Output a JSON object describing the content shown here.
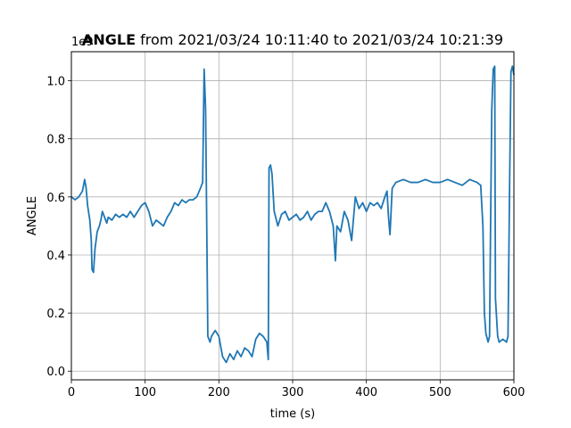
{
  "chart_data": {
    "type": "line",
    "title_bold": "ANGLE",
    "title_rest": " from 2021/03/24 10:11:40 to 2021/03/24 10:21:39",
    "xlabel": "time (s)",
    "ylabel": "ANGLE",
    "y_offset_label": "1e9",
    "xlim": [
      0,
      600
    ],
    "ylim": [
      -0.03,
      1.1
    ],
    "x_ticks": [
      0,
      100,
      200,
      300,
      400,
      500,
      600
    ],
    "y_ticks": [
      0.0,
      0.2,
      0.4,
      0.6,
      0.8,
      1.0
    ],
    "x_tick_labels": [
      "0",
      "100",
      "200",
      "300",
      "400",
      "500",
      "600"
    ],
    "y_tick_labels": [
      "0.0",
      "0.2",
      "0.4",
      "0.6",
      "0.8",
      "1.0"
    ],
    "grid": true,
    "line_color": "#1f77b4",
    "series": [
      {
        "x": [
          0,
          5,
          10,
          15,
          18,
          20,
          22,
          25,
          27,
          28,
          30,
          32,
          35,
          38,
          40,
          42,
          45,
          48,
          50,
          55,
          60,
          65,
          70,
          75,
          80,
          85,
          90,
          95,
          100,
          105,
          110,
          115,
          120,
          125,
          130,
          135,
          140,
          145,
          150,
          155,
          160,
          165,
          170,
          175,
          178,
          180,
          182,
          185,
          188,
          190,
          195,
          200,
          205,
          210,
          215,
          220,
          225,
          230,
          235,
          240,
          245,
          250,
          255,
          260,
          265,
          267,
          268,
          270,
          272,
          275,
          280,
          285,
          290,
          295,
          300,
          305,
          310,
          315,
          320,
          325,
          330,
          335,
          340,
          345,
          350,
          355,
          358,
          360,
          365,
          370,
          375,
          380,
          385,
          390,
          395,
          400,
          405,
          410,
          415,
          420,
          425,
          428,
          430,
          432,
          435,
          440,
          450,
          460,
          470,
          480,
          490,
          500,
          510,
          520,
          530,
          540,
          550,
          555,
          558,
          560,
          562,
          565,
          567,
          568,
          570,
          572,
          574,
          575,
          578,
          580,
          585,
          590,
          592,
          594,
          596,
          598,
          600
        ],
        "y": [
          0.6,
          0.59,
          0.6,
          0.62,
          0.66,
          0.63,
          0.57,
          0.52,
          0.45,
          0.35,
          0.34,
          0.42,
          0.48,
          0.5,
          0.52,
          0.55,
          0.53,
          0.51,
          0.53,
          0.52,
          0.54,
          0.53,
          0.54,
          0.53,
          0.55,
          0.53,
          0.55,
          0.57,
          0.58,
          0.55,
          0.5,
          0.52,
          0.51,
          0.5,
          0.53,
          0.55,
          0.58,
          0.57,
          0.59,
          0.58,
          0.59,
          0.59,
          0.6,
          0.63,
          0.65,
          1.04,
          0.9,
          0.12,
          0.1,
          0.12,
          0.14,
          0.12,
          0.05,
          0.03,
          0.06,
          0.04,
          0.07,
          0.05,
          0.08,
          0.07,
          0.05,
          0.11,
          0.13,
          0.12,
          0.1,
          0.04,
          0.7,
          0.71,
          0.68,
          0.55,
          0.5,
          0.54,
          0.55,
          0.52,
          0.53,
          0.54,
          0.52,
          0.53,
          0.55,
          0.52,
          0.54,
          0.55,
          0.55,
          0.58,
          0.55,
          0.5,
          0.38,
          0.5,
          0.48,
          0.55,
          0.52,
          0.45,
          0.6,
          0.56,
          0.58,
          0.55,
          0.58,
          0.57,
          0.58,
          0.56,
          0.6,
          0.62,
          0.53,
          0.47,
          0.63,
          0.65,
          0.66,
          0.65,
          0.65,
          0.66,
          0.65,
          0.65,
          0.66,
          0.65,
          0.64,
          0.66,
          0.65,
          0.64,
          0.5,
          0.2,
          0.13,
          0.1,
          0.12,
          0.4,
          0.9,
          1.04,
          1.05,
          0.25,
          0.12,
          0.1,
          0.11,
          0.1,
          0.12,
          0.6,
          1.03,
          1.05,
          1.02
        ]
      }
    ]
  }
}
